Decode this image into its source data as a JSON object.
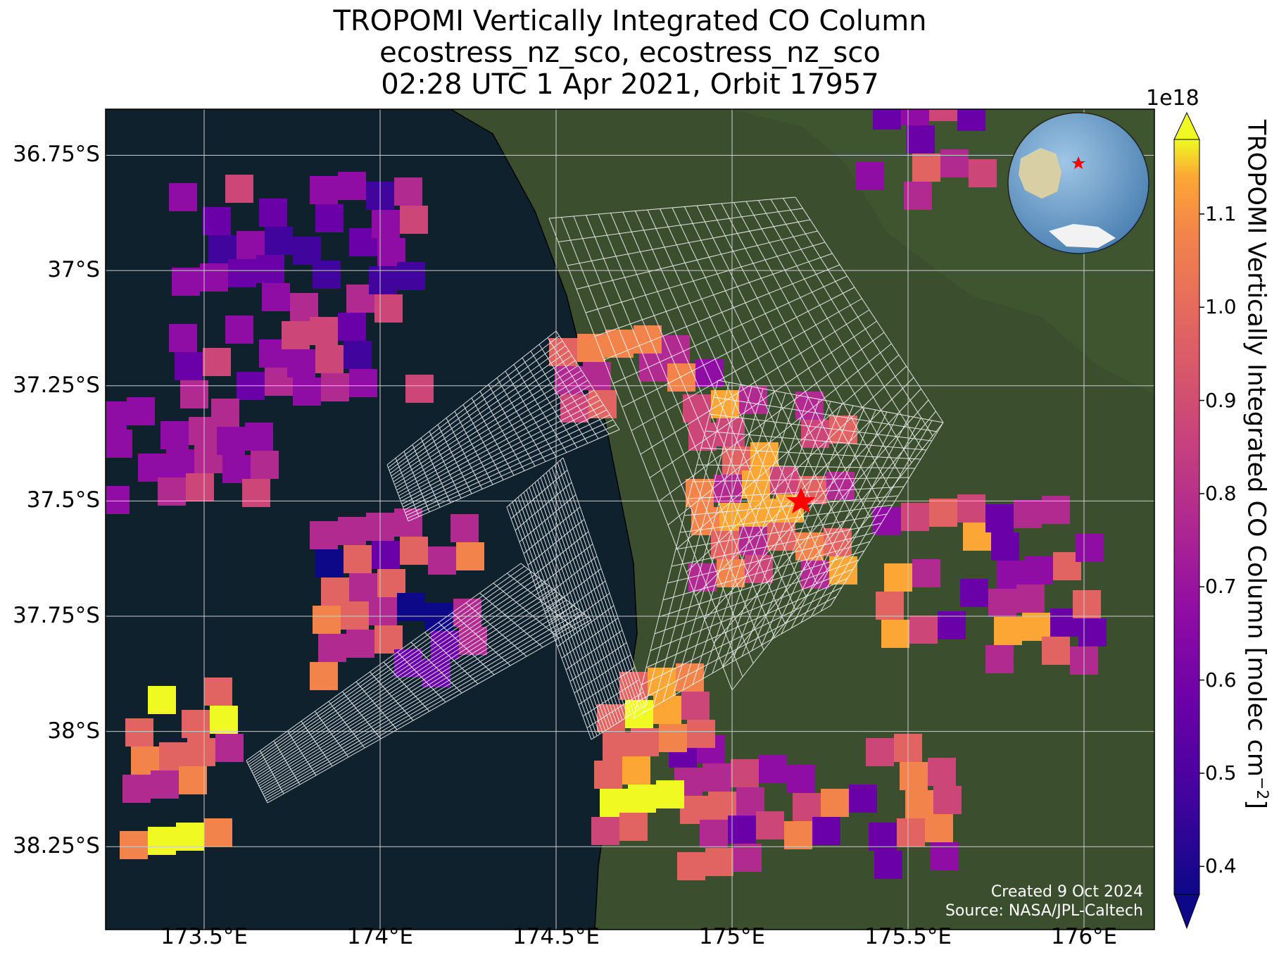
{
  "title": {
    "line1": "TROPOMI Vertically Integrated CO Column",
    "line2": "ecostress_nz_sco, ecostress_nz_sco",
    "line3": "02:28 UTC 1 Apr 2021, Orbit 17957"
  },
  "map": {
    "extent": {
      "lon_min": 173.22,
      "lon_max": 176.2,
      "lat_min": -38.43,
      "lat_max": -36.65
    },
    "gridlines": true,
    "lat_ticks": [
      {
        "value": -36.75,
        "label": "36.75°S"
      },
      {
        "value": -37.0,
        "label": "37°S"
      },
      {
        "value": -37.25,
        "label": "37.25°S"
      },
      {
        "value": -37.5,
        "label": "37.5°S"
      },
      {
        "value": -37.75,
        "label": "37.75°S"
      },
      {
        "value": -38.0,
        "label": "38°S"
      },
      {
        "value": -38.25,
        "label": "38.25°S"
      }
    ],
    "lon_ticks": [
      {
        "value": 173.5,
        "label": "173.5°E"
      },
      {
        "value": 174.0,
        "label": "174°E"
      },
      {
        "value": 174.5,
        "label": "174.5°E"
      },
      {
        "value": 175.0,
        "label": "175°E"
      },
      {
        "value": 175.5,
        "label": "175.5°E"
      },
      {
        "value": 176.0,
        "label": "176°E"
      }
    ],
    "basemap": "satellite imagery",
    "ocean_color": "#0f212d",
    "land_color": "#3b4f2e",
    "target_marker": {
      "type": "red-star",
      "color": "#ff0000",
      "lon": 175.22,
      "lat": -37.44
    },
    "inset_globe": {
      "description_icon": "globe-icon",
      "marker_color": "#ff0000"
    },
    "ecostress_footprints": "white outlined grid swath"
  },
  "colorbar": {
    "label": "TROPOMI Vertically Integrated CO Column [molec cm",
    "label_exp": "−2",
    "label_close": "]",
    "multiplier": "1e18",
    "colormap": "plasma",
    "min": 0.37,
    "max": 1.18,
    "ticks": [
      "0.4",
      "0.5",
      "0.6",
      "0.7",
      "0.8",
      "0.9",
      "1.0",
      "1.1"
    ],
    "tick_values": [
      0.4,
      0.5,
      0.6,
      0.7,
      0.8,
      0.9,
      1.0,
      1.1
    ],
    "extend": "both"
  },
  "credits": {
    "created": "Created 9 Oct 2024",
    "source": "Source: NASA/JPL-Caltech"
  }
}
